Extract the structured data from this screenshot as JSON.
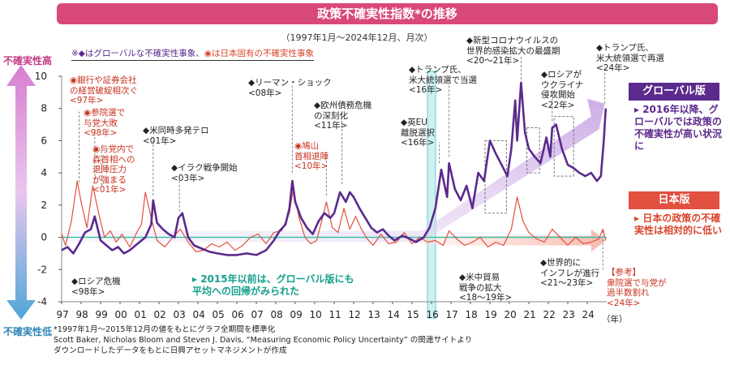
{
  "title": "政策不確実性指数*の推移",
  "subtitle": "（1997年1月～2024年12月、月次）",
  "legend_note": {
    "global_part": "※◆はグローバルな不確実性事象、",
    "japan_part": "◉は日本固有の不確実性事象"
  },
  "axis_high_label": "不確実性高",
  "axis_low_label": "不確実性低",
  "year_unit": "（年）",
  "colors": {
    "global": "#5b2a8c",
    "japan": "#e25040",
    "title": "#d9487a",
    "zero": "#2bbfa8"
  },
  "side": {
    "global_title": "グローバル版",
    "global_text": "▸ 2016年以降、グローバルでは政策の不確実性が高い状況に",
    "japan_title": "日本版",
    "japan_text": "▸ 日本の政策の不確実性は相対的に低い"
  },
  "mid_note": "▸ 2015年以前は、グローバル版にも\n平均への回帰がみられた",
  "footnote": [
    "*1997年1月～2015年12月の値をもとにグラフ全期間を標準化",
    "Scott Baker, Nicholas Bloom and Steven J. Davis, “Measuring Economic Policy Uncertainty” の関連サイトより",
    "ダウンロードしたデータをもとに日興アセットマネジメントが作成"
  ],
  "annotations": {
    "a1": "◉銀行や証券会社\nの経営破綻相次ぐ\n<97年>",
    "a2": "◉参院選で\n与党大敗\n<98年>",
    "a3": "◉与党内で\n森首相への\n退陣圧力\nが強まる\n<01年>",
    "a4": "◆米同時多発テロ\n<01年>",
    "a5": "◆イラク戦争開始\n<03年>",
    "a6": "◆リーマン・ショック\n<08年>",
    "a7": "◆欧州債務危機\nの深刻化\n<11年>",
    "a8": "◉鳩山\n首相退陣\n<10年>",
    "a9": "◆英EU\n離脱選択\n<16年>",
    "a10": "◆トランプ氏、\n米大統領選で当選\n<16年>",
    "a11": "◆新型コロナウイルスの\n世界的感染拡大の最盛期\n<20～21年>",
    "a12": "◆ロシアが\nウクライナ\n侵攻開始\n<22年>",
    "a13": "◆トランプ氏、\n米大統領選で再選\n<24年>",
    "a14": "◆ロシア危機\n<98年>",
    "a15": "◆米中貿易\n戦争の拡大\n<18～19年>",
    "a16": "◆世界的に\nインフレが進行\n<21～23年>",
    "a17": "【参考】\n衆院選で与党が\n過半数割れ\n<24年>"
  },
  "chart_data": {
    "type": "line",
    "title": "政策不確実性指数*の推移",
    "xlabel": "（年）",
    "ylabel": "",
    "ylim": [
      -4,
      10
    ],
    "yticks": [
      -4,
      -2,
      0,
      2,
      4,
      6,
      8,
      10
    ],
    "xticks": [
      "97",
      "98",
      "99",
      "00",
      "01",
      "02",
      "03",
      "04",
      "05",
      "06",
      "07",
      "08",
      "09",
      "10",
      "11",
      "12",
      "13",
      "14",
      "15",
      "16",
      "17",
      "18",
      "19",
      "20",
      "21",
      "22",
      "23",
      "24"
    ],
    "highlight_year": "16",
    "x_start": 1997.0,
    "x_end": 2025.0,
    "series": [
      {
        "name": "グローバル版",
        "x": [
          1997.0,
          1997.3,
          1997.6,
          1997.9,
          1998.2,
          1998.5,
          1998.7,
          1998.8,
          1999.0,
          1999.3,
          1999.6,
          1999.9,
          2000.2,
          2000.5,
          2000.8,
          2001.0,
          2001.3,
          2001.6,
          2001.7,
          2001.9,
          2002.2,
          2002.5,
          2002.8,
          2003.0,
          2003.2,
          2003.5,
          2003.8,
          2004.2,
          2004.6,
          2005.0,
          2005.5,
          2006.0,
          2006.5,
          2007.0,
          2007.5,
          2007.9,
          2008.2,
          2008.5,
          2008.7,
          2008.85,
          2009.0,
          2009.3,
          2009.6,
          2009.9,
          2010.2,
          2010.5,
          2010.8,
          2011.0,
          2011.3,
          2011.6,
          2011.8,
          2012.0,
          2012.3,
          2012.6,
          2012.9,
          2013.2,
          2013.5,
          2013.8,
          2014.1,
          2014.5,
          2014.9,
          2015.2,
          2015.6,
          2015.9,
          2016.2,
          2016.5,
          2016.8,
          2016.9,
          2017.2,
          2017.5,
          2017.8,
          2018.1,
          2018.4,
          2018.7,
          2019.0,
          2019.3,
          2019.6,
          2019.9,
          2020.1,
          2020.3,
          2020.4,
          2020.6,
          2020.8,
          2021.0,
          2021.3,
          2021.6,
          2021.9,
          2022.1,
          2022.2,
          2022.4,
          2022.7,
          2023.0,
          2023.3,
          2023.6,
          2023.9,
          2024.2,
          2024.5,
          2024.7,
          2024.85,
          2024.95
        ],
        "values": [
          -0.8,
          -0.6,
          -1.0,
          -0.4,
          0.3,
          0.5,
          1.3,
          0.8,
          -0.2,
          -0.5,
          -0.8,
          -0.6,
          -1.0,
          -0.8,
          -0.5,
          -0.3,
          0.0,
          0.8,
          2.3,
          0.9,
          0.5,
          0.2,
          0.0,
          1.2,
          1.5,
          0.0,
          -0.5,
          -0.7,
          -0.9,
          -1.0,
          -1.1,
          -1.1,
          -1.0,
          -1.1,
          -0.8,
          -0.2,
          0.4,
          0.8,
          1.8,
          3.5,
          2.2,
          1.2,
          0.6,
          0.2,
          1.0,
          1.5,
          1.2,
          1.5,
          2.8,
          2.2,
          2.8,
          2.5,
          1.8,
          1.2,
          0.6,
          0.3,
          0.5,
          0.1,
          -0.2,
          0.1,
          -0.1,
          -0.3,
          0.0,
          0.6,
          1.8,
          4.2,
          2.5,
          4.6,
          3.0,
          2.3,
          3.2,
          1.8,
          4.0,
          3.5,
          6.0,
          5.2,
          4.5,
          3.8,
          5.5,
          8.5,
          6.0,
          9.6,
          6.5,
          5.5,
          5.0,
          4.6,
          6.2,
          5.0,
          6.8,
          7.0,
          5.5,
          4.5,
          4.3,
          4.0,
          3.8,
          4.0,
          3.5,
          3.8,
          6.0,
          8.0
        ]
      },
      {
        "name": "日本版",
        "x": [
          1997.0,
          1997.2,
          1997.5,
          1997.8,
          1998.0,
          1998.3,
          1998.6,
          1998.9,
          1999.2,
          1999.5,
          1999.8,
          2000.1,
          2000.5,
          2000.9,
          2001.1,
          2001.3,
          2001.6,
          2001.9,
          2002.3,
          2002.7,
          2003.1,
          2003.5,
          2003.9,
          2004.3,
          2004.7,
          2005.1,
          2005.5,
          2005.9,
          2006.3,
          2006.7,
          2007.1,
          2007.5,
          2007.9,
          2008.3,
          2008.7,
          2008.9,
          2009.2,
          2009.5,
          2009.8,
          2010.1,
          2010.4,
          2010.6,
          2010.9,
          2011.2,
          2011.5,
          2011.8,
          2012.1,
          2012.4,
          2012.7,
          2013.0,
          2013.4,
          2013.8,
          2014.2,
          2014.6,
          2015.0,
          2015.4,
          2015.8,
          2016.2,
          2016.6,
          2016.9,
          2017.3,
          2017.7,
          2018.1,
          2018.5,
          2018.9,
          2019.3,
          2019.7,
          2020.1,
          2020.4,
          2020.7,
          2021.0,
          2021.4,
          2021.8,
          2022.2,
          2022.6,
          2023.0,
          2023.4,
          2023.8,
          2024.2,
          2024.6,
          2024.8,
          2024.95
        ],
        "values": [
          0.2,
          -0.5,
          1.0,
          3.5,
          2.2,
          0.6,
          3.2,
          1.5,
          0.0,
          0.4,
          -0.3,
          0.2,
          -0.6,
          0.4,
          0.8,
          2.8,
          1.2,
          -0.2,
          -0.6,
          0.0,
          0.5,
          -0.3,
          -0.9,
          -0.8,
          -0.4,
          -0.6,
          -0.3,
          -0.8,
          -0.5,
          0.0,
          0.2,
          -0.4,
          0.3,
          0.4,
          1.5,
          3.0,
          1.2,
          0.0,
          -0.4,
          -0.2,
          1.2,
          2.2,
          0.6,
          0.3,
          1.8,
          0.5,
          1.3,
          0.5,
          -0.1,
          -0.5,
          0.2,
          -0.4,
          -0.3,
          0.3,
          -0.4,
          0.0,
          -0.3,
          -0.2,
          -0.5,
          0.4,
          -0.1,
          -0.5,
          -0.3,
          0.0,
          -0.6,
          -0.3,
          -0.5,
          0.5,
          2.5,
          1.0,
          0.3,
          -0.1,
          -0.3,
          0.5,
          0.0,
          -0.5,
          0.0,
          -0.4,
          -0.3,
          -0.1,
          0.5,
          -0.2
        ]
      }
    ]
  }
}
